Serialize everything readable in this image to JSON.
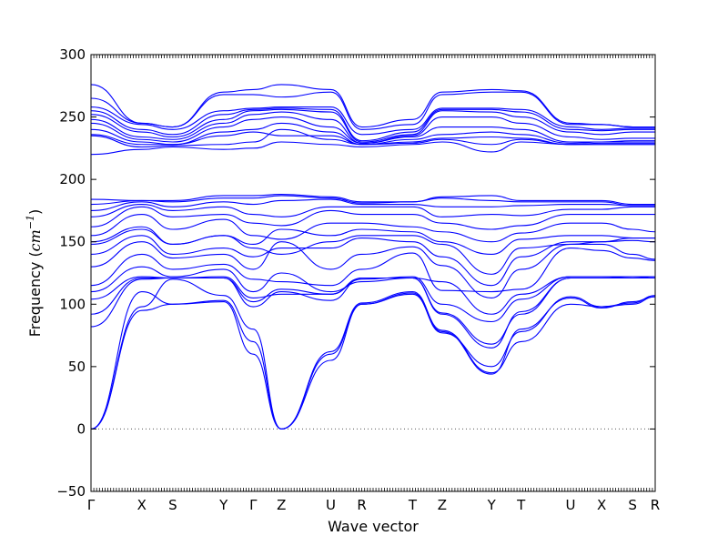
{
  "chart_data": {
    "type": "line",
    "xlabel": "Wave vector",
    "ylabel_text": "Frequency (",
    "ylabel_unit": "cm",
    "ylabel_exp": "−1",
    "ylabel_close": ")",
    "ylim": [
      -50,
      300
    ],
    "yticks": [
      -50,
      0,
      50,
      100,
      150,
      200,
      250,
      300
    ],
    "grid": false,
    "zero_line": true,
    "color": "#0000ff",
    "xlim": [
      0,
      20
    ],
    "kpoints": [
      {
        "label": "Γ",
        "x": 0
      },
      {
        "label": "X",
        "x": 1.8
      },
      {
        "label": "S",
        "x": 2.9
      },
      {
        "label": "Y",
        "x": 4.7
      },
      {
        "label": "Γ",
        "x": 5.75
      },
      {
        "label": "Z",
        "x": 6.75
      },
      {
        "label": "U",
        "x": 8.5
      },
      {
        "label": "R",
        "x": 9.6
      },
      {
        "label": "T",
        "x": 11.4
      },
      {
        "label": "Z",
        "x": 12.45
      },
      {
        "label": "Y",
        "x": 14.2
      },
      {
        "label": "T",
        "x": 15.25
      },
      {
        "label": "U",
        "x": 17.0
      },
      {
        "label": "X",
        "x": 18.1
      },
      {
        "label": "S",
        "x": 19.2
      },
      {
        "label": "R",
        "x": 20.0
      }
    ],
    "series": [
      {
        "values": [
          0,
          95,
          100,
          102,
          60,
          0,
          55,
          100,
          108,
          78,
          44,
          80,
          105,
          97,
          102,
          106
        ]
      },
      {
        "values": [
          0,
          110,
          100,
          103,
          70,
          0,
          60,
          100,
          109,
          77,
          50,
          78,
          106,
          98,
          101,
          107
        ]
      },
      {
        "values": [
          0,
          98,
          120,
          107,
          80,
          0,
          62,
          101,
          110,
          79,
          45,
          70,
          100,
          98,
          100,
          106
        ]
      },
      {
        "values": [
          82,
          120,
          121,
          121,
          98,
          110,
          103,
          121,
          121,
          92,
          65,
          94,
          121,
          121,
          121,
          121
        ]
      },
      {
        "values": [
          92,
          121,
          121,
          121,
          102,
          112,
          108,
          121,
          121,
          93,
          68,
          92,
          121,
          121,
          121,
          121
        ]
      },
      {
        "values": [
          104,
          122,
          121,
          122,
          105,
          108,
          108,
          120,
          122,
          100,
          86,
          104,
          122,
          122,
          122,
          122
        ]
      },
      {
        "values": [
          110,
          130,
          122,
          128,
          110,
          125,
          110,
          118,
          121,
          118,
          92,
          108,
          122,
          122,
          121,
          122
        ]
      },
      {
        "values": [
          115,
          140,
          128,
          132,
          120,
          118,
          115,
          128,
          141,
          111,
          110,
          112,
          145,
          143,
          137,
          135
        ]
      },
      {
        "values": [
          130,
          150,
          137,
          140,
          128,
          150,
          128,
          140,
          146,
          131,
          105,
          128,
          148,
          148,
          140,
          136
        ]
      },
      {
        "values": [
          140,
          155,
          140,
          145,
          138,
          145,
          145,
          153,
          150,
          138,
          115,
          138,
          150,
          150,
          151,
          150
        ]
      },
      {
        "values": [
          148,
          160,
          148,
          155,
          145,
          140,
          150,
          155,
          155,
          148,
          124,
          145,
          148,
          150,
          153,
          153
        ]
      },
      {
        "values": [
          150,
          162,
          148,
          155,
          148,
          160,
          155,
          160,
          158,
          150,
          140,
          152,
          155,
          155,
          153,
          153
        ]
      },
      {
        "values": [
          155,
          172,
          160,
          168,
          155,
          152,
          165,
          165,
          162,
          158,
          150,
          157,
          165,
          165,
          160,
          158
        ]
      },
      {
        "values": [
          162,
          178,
          170,
          172,
          165,
          163,
          175,
          172,
          172,
          165,
          160,
          163,
          172,
          172,
          172,
          172
        ]
      },
      {
        "values": [
          170,
          180,
          175,
          178,
          172,
          170,
          178,
          178,
          178,
          170,
          172,
          171,
          176,
          176,
          178,
          178
        ]
      },
      {
        "values": [
          175,
          182,
          178,
          182,
          180,
          183,
          184,
          180,
          180,
          178,
          178,
          179,
          180,
          180,
          179,
          179
        ]
      },
      {
        "values": [
          180,
          183,
          182,
          185,
          185,
          187,
          185,
          181,
          182,
          185,
          183,
          182,
          182,
          182,
          179,
          179
        ]
      },
      {
        "values": [
          184,
          183,
          183,
          187,
          187,
          188,
          186,
          182,
          182,
          186,
          187,
          183,
          183,
          183,
          180,
          180
        ]
      },
      {
        "values": [
          220,
          224,
          226,
          224,
          225,
          230,
          228,
          226,
          228,
          230,
          222,
          230,
          228,
          228,
          228,
          228
        ]
      },
      {
        "values": [
          235,
          226,
          227,
          228,
          230,
          240,
          232,
          228,
          229,
          232,
          228,
          232,
          228,
          228,
          228,
          228
        ]
      },
      {
        "values": [
          236,
          228,
          228,
          235,
          238,
          235,
          235,
          228,
          230,
          233,
          234,
          233,
          228,
          229,
          229,
          229
        ]
      },
      {
        "values": [
          240,
          230,
          228,
          238,
          240,
          245,
          238,
          228,
          232,
          236,
          238,
          236,
          229,
          230,
          230,
          230
        ]
      },
      {
        "values": [
          245,
          232,
          230,
          242,
          248,
          250,
          242,
          229,
          234,
          242,
          242,
          240,
          230,
          230,
          231,
          231
        ]
      },
      {
        "values": [
          248,
          234,
          232,
          245,
          252,
          254,
          248,
          229,
          235,
          250,
          250,
          245,
          234,
          232,
          233,
          233
        ]
      },
      {
        "values": [
          252,
          238,
          234,
          248,
          255,
          256,
          254,
          230,
          236,
          255,
          254,
          250,
          238,
          236,
          238,
          238
        ]
      },
      {
        "values": [
          255,
          240,
          236,
          252,
          256,
          257,
          256,
          231,
          238,
          256,
          256,
          254,
          240,
          239,
          240,
          240
        ]
      },
      {
        "values": [
          258,
          244,
          240,
          255,
          257,
          258,
          258,
          236,
          240,
          257,
          257,
          256,
          242,
          240,
          241,
          241
        ]
      },
      {
        "values": [
          265,
          245,
          242,
          268,
          268,
          266,
          270,
          240,
          244,
          268,
          270,
          270,
          244,
          244,
          242,
          242
        ]
      },
      {
        "values": [
          276,
          245,
          242,
          270,
          272,
          276,
          272,
          242,
          248,
          270,
          272,
          271,
          245,
          244,
          242,
          242
        ]
      }
    ]
  }
}
